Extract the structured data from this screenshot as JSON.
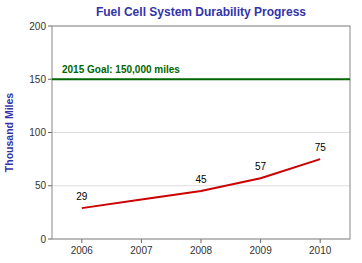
{
  "chart_data": {
    "type": "line",
    "title": "Fuel Cell System Durability Progress",
    "y_label": "Thousand Miles",
    "x": [
      2006,
      2007,
      2008,
      2009,
      2010
    ],
    "values": [
      29,
      37,
      45,
      57,
      75
    ],
    "color": "#CC0000",
    "data_labels": true,
    "value_labels": [
      "29",
      null,
      "45",
      "57",
      "75"
    ],
    "annotations": [
      {
        "type": "hline",
        "y": 150,
        "label": "2015 Goal: 150,000 miles",
        "color": "#006600"
      }
    ],
    "xlim": [
      2005.5,
      2010.5
    ],
    "xticks": [
      2006,
      2007,
      2008,
      2009,
      2010
    ],
    "ylim": [
      0,
      200
    ],
    "yticks": [
      0,
      50,
      100,
      150,
      200
    ],
    "grid": true
  }
}
